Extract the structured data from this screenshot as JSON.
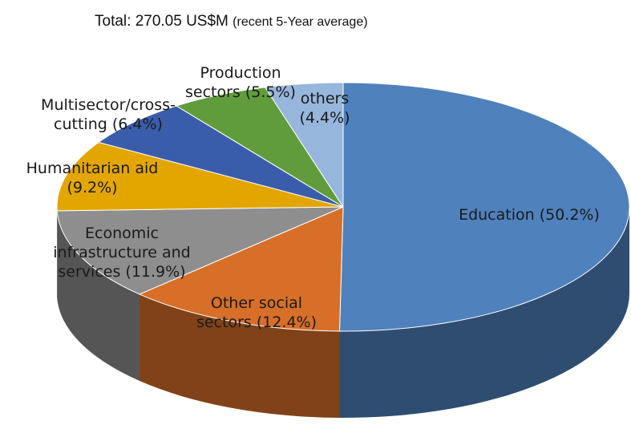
{
  "chart_data": {
    "type": "pie",
    "title": "Total: 270.05 US$M",
    "subtitle": "(recent 5-Year average)",
    "categories": [
      "Education",
      "Other social sectors",
      "Economic infrastructure and services",
      "Humanitarian aid",
      "Multisector/cross-cutting",
      "Production sectors",
      "others"
    ],
    "values": [
      50.2,
      12.4,
      11.9,
      9.2,
      6.4,
      5.5,
      4.4
    ],
    "value_labels": [
      "(50.2%)",
      "(12.4%)",
      "(11.9%)",
      "(9.2%)",
      "(6.4%)",
      "(5.5%)",
      "(4.4%)"
    ],
    "colors": [
      "#4f81bd",
      "#d76f28",
      "#8e8e8e",
      "#e3a600",
      "#3a5dab",
      "#609c3c",
      "#97b6dc"
    ]
  }
}
